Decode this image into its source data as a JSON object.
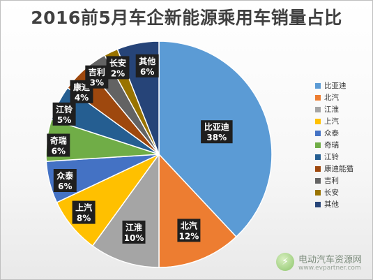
{
  "chart_data": {
    "type": "pie",
    "title": "2016前5月车企新能源乘用车销量占比",
    "categories": [
      "比亚迪",
      "北汽",
      "江淮",
      "上汽",
      "众泰",
      "奇瑞",
      "江铃",
      "康迪能猫",
      "吉利",
      "长安",
      "其他"
    ],
    "values": [
      38,
      12,
      10,
      8,
      6,
      6,
      5,
      4,
      3,
      2,
      6
    ],
    "data_labels": [
      {
        "name": "比亚迪",
        "value": "38%"
      },
      {
        "name": "北汽",
        "value": "12%"
      },
      {
        "name": "江淮",
        "value": "10%"
      },
      {
        "name": "上汽",
        "value": "8%"
      },
      {
        "name": "众泰",
        "value": "6%"
      },
      {
        "name": "奇瑞",
        "value": "6%"
      },
      {
        "name": "江铃",
        "value": "5%"
      },
      {
        "name": "康迪",
        "value": "4%"
      },
      {
        "name": "吉利",
        "value": "3%"
      },
      {
        "name": "长安",
        "value": "2%"
      },
      {
        "name": "其他",
        "value": "6%"
      }
    ],
    "colors": [
      "#5b9bd5",
      "#ed7d31",
      "#a5a5a5",
      "#ffc000",
      "#4472c4",
      "#70ad47",
      "#255e91",
      "#9e480e",
      "#636363",
      "#997300",
      "#264478"
    ],
    "legend_position": "right"
  },
  "watermark": {
    "logo_glyph": "⚡",
    "name": "电动汽车资源网",
    "url": "www.evpartner.com"
  }
}
